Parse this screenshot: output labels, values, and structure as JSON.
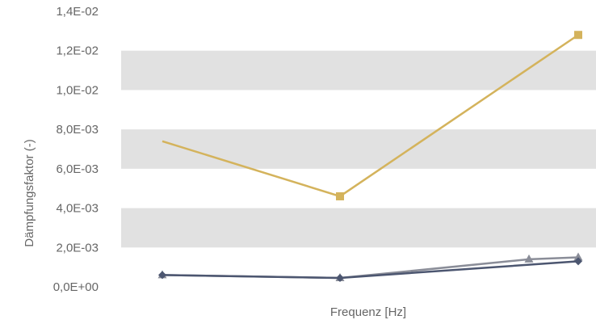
{
  "chart_data": {
    "type": "line",
    "xlabel": "Frequenz [Hz]",
    "ylabel": "Dämpfungsfaktor (-)",
    "ylim": [
      0,
      0.014
    ],
    "y_ticks": [
      {
        "value": 0.014,
        "label": "1,4E-02"
      },
      {
        "value": 0.012,
        "label": "1,2E-02"
      },
      {
        "value": 0.01,
        "label": "1,0E-02"
      },
      {
        "value": 0.008,
        "label": "8,0E-03"
      },
      {
        "value": 0.006,
        "label": "6,0E-03"
      },
      {
        "value": 0.004,
        "label": "4,0E-03"
      },
      {
        "value": 0.002,
        "label": "2,0E-03"
      },
      {
        "value": 0.0,
        "label": "0,0E+00"
      }
    ],
    "x_points": 4,
    "grid": "alternating horizontal bands",
    "legend": "none",
    "series": [
      {
        "values": [
          0.0074,
          0.0046,
          null,
          0.0128
        ],
        "color": "#d4b35c",
        "marker": "square",
        "markers_shown": [
          false,
          true,
          false,
          true
        ]
      },
      {
        "values": [
          0.0006,
          0.00045,
          0.0014,
          0.0015
        ],
        "color": "#8a8d98",
        "marker": "triangle"
      },
      {
        "values": [
          0.0006,
          0.00045,
          null,
          0.0013
        ],
        "color": "#4c5670",
        "marker": "diamond"
      }
    ],
    "colors": {
      "band": "#e1e1e1",
      "text": "#666666"
    }
  }
}
